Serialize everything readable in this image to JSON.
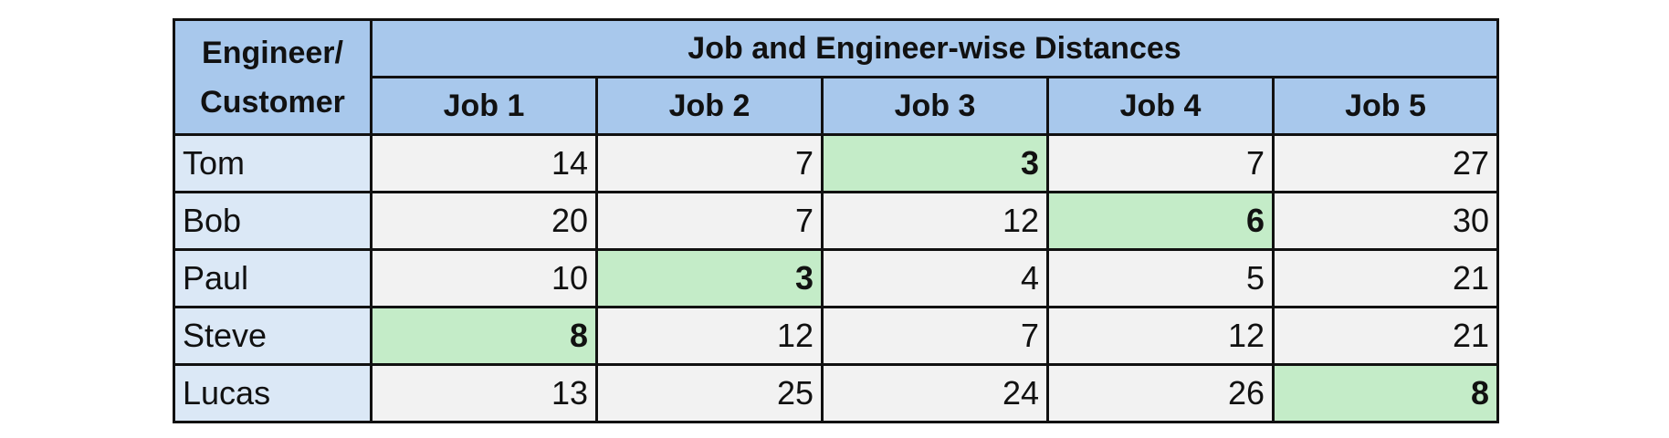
{
  "corner_line1": "Engineer/",
  "corner_line2": "Customer",
  "title": "Job and Engineer-wise Distances",
  "jobs": [
    "Job 1",
    "Job 2",
    "Job 3",
    "Job 4",
    "Job 5"
  ],
  "rows": [
    {
      "name": "Tom",
      "values": [
        "14",
        "7",
        "3",
        "7",
        "27"
      ],
      "highlight": 2
    },
    {
      "name": "Bob",
      "values": [
        "20",
        "7",
        "12",
        "6",
        "30"
      ],
      "highlight": 3
    },
    {
      "name": "Paul",
      "values": [
        "10",
        "3",
        "4",
        "5",
        "21"
      ],
      "highlight": 1
    },
    {
      "name": "Steve",
      "values": [
        "8",
        "12",
        "7",
        "12",
        "21"
      ],
      "highlight": 0
    },
    {
      "name": "Lucas",
      "values": [
        "13",
        "25",
        "24",
        "26",
        "8"
      ],
      "highlight": 4
    }
  ],
  "colors": {
    "header_bg": "#a8c8ec",
    "name_bg": "#dbe8f6",
    "cell_bg": "#f2f2f2",
    "highlight_bg": "#c4ecc8",
    "border": "#111111"
  }
}
